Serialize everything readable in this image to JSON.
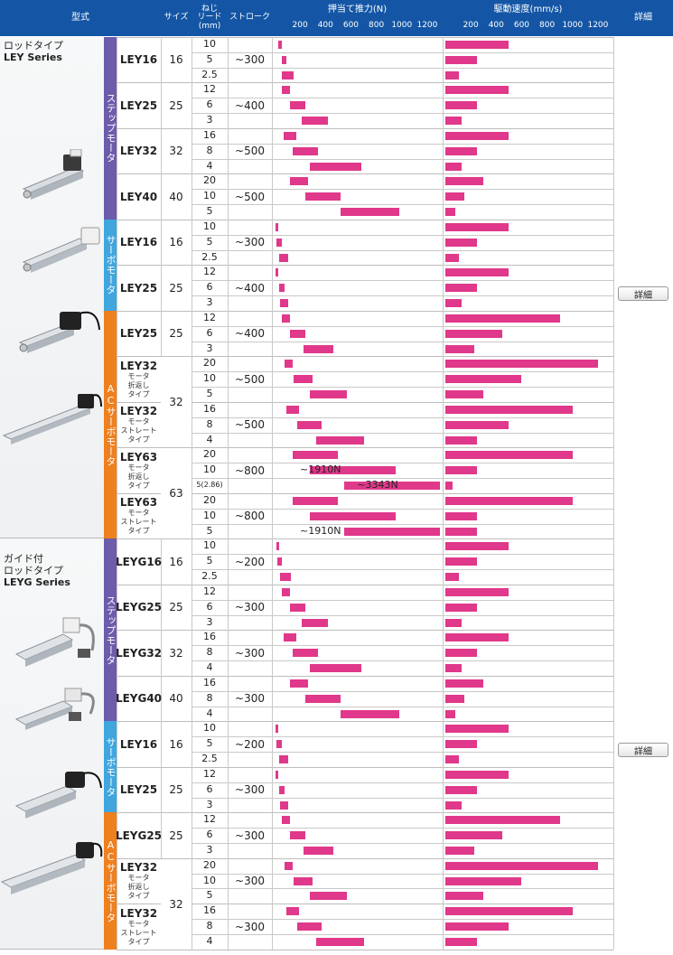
{
  "header": {
    "type_label": "型式",
    "size_label": "サイズ",
    "lead_label": [
      "ねじ",
      "リード",
      "(mm)"
    ],
    "stroke_label": "ストローク",
    "force_label": "押当て推力(N)",
    "speed_label": "駆動速度(mm/s)",
    "detail_label": "詳細",
    "ticks": [
      "200",
      "400",
      "600",
      "800",
      "1000",
      "1200"
    ]
  },
  "series": [
    {
      "name_lines": [
        "ロッドタイプ",
        "LEY Series"
      ],
      "detail_button": "詳細"
    },
    {
      "name_lines": [
        "ガイド付",
        "ロッドタイプ",
        "LEYG Series"
      ],
      "detail_button": "詳細"
    }
  ],
  "controls": [
    {
      "label": "ステップモータ",
      "color": "#6d5bab"
    },
    {
      "label": "サーボモータ",
      "color": "#3fa6de"
    },
    {
      "label": "ACサーボモータ",
      "color": "#f07f1d"
    },
    {
      "label": "ステップモータ",
      "color": "#6d5bab"
    },
    {
      "label": "サーボモータ",
      "color": "#3fa6de"
    },
    {
      "label": "ACサーボモータ",
      "color": "#f07f1d"
    }
  ],
  "groups": [
    {
      "model": "LEY16",
      "sub": [],
      "size": "16",
      "stroke": "~300"
    },
    {
      "model": "LEY25",
      "sub": [],
      "size": "25",
      "stroke": "~400"
    },
    {
      "model": "LEY32",
      "sub": [],
      "size": "32",
      "stroke": "~500"
    },
    {
      "model": "LEY40",
      "sub": [],
      "size": "40",
      "stroke": "~500"
    },
    {
      "model": "LEY16",
      "sub": [],
      "size": "16",
      "stroke": "~300"
    },
    {
      "model": "LEY25",
      "sub": [],
      "size": "25",
      "stroke": "~400"
    },
    {
      "model": "LEY25",
      "sub": [],
      "size": "25",
      "stroke": "~400"
    },
    {
      "model": "LEY32",
      "sub": [
        "モータ",
        "折返し",
        "タイプ"
      ],
      "size": "",
      "stroke": "~500"
    },
    {
      "model": "LEY32",
      "sub": [
        "モータ",
        "ストレート",
        "タイプ"
      ],
      "size": "",
      "stroke": "~500"
    },
    {
      "model": "LEY63",
      "sub": [
        "モータ",
        "折返し",
        "タイプ"
      ],
      "size": "",
      "stroke": "~800"
    },
    {
      "model": "LEY63",
      "sub": [
        "モータ",
        "ストレート",
        "タイプ"
      ],
      "size": "",
      "stroke": "~800"
    },
    {
      "model": "LEYG16",
      "sub": [],
      "size": "16",
      "stroke": "~200"
    },
    {
      "model": "LEYG25",
      "sub": [],
      "size": "25",
      "stroke": "~300"
    },
    {
      "model": "LEYG32",
      "sub": [],
      "size": "32",
      "stroke": "~300"
    },
    {
      "model": "LEYG40",
      "sub": [],
      "size": "40",
      "stroke": "~300"
    },
    {
      "model": "LEY16",
      "sub": [],
      "size": "16",
      "stroke": "~200"
    },
    {
      "model": "LEY25",
      "sub": [],
      "size": "25",
      "stroke": "~300"
    },
    {
      "model": "LEYG25",
      "sub": [],
      "size": "25",
      "stroke": "~300"
    },
    {
      "model": "LEY32",
      "sub": [
        "モータ",
        "折返し",
        "タイプ"
      ],
      "size": "",
      "stroke": "~300"
    },
    {
      "model": "LEY32",
      "sub": [
        "モータ",
        "ストレート",
        "タイプ"
      ],
      "size": "",
      "stroke": "~300"
    }
  ],
  "merged_sizes": [
    {
      "value": "32"
    },
    {
      "value": "63"
    },
    {
      "value": "32"
    }
  ],
  "leads": [
    "10",
    "5",
    "2.5",
    "12",
    "6",
    "3",
    "16",
    "8",
    "4",
    "20",
    "10",
    "5",
    "10",
    "5",
    "2.5",
    "12",
    "6",
    "3",
    "12",
    "6",
    "3",
    "20",
    "10",
    "5",
    "16",
    "8",
    "4",
    "20",
    "10",
    "5(2.86)",
    "20",
    "10",
    "5",
    "10",
    "5",
    "2.5",
    "12",
    "6",
    "3",
    "16",
    "8",
    "4",
    "16",
    "8",
    "4",
    "10",
    "5",
    "2.5",
    "12",
    "6",
    "3",
    "12",
    "6",
    "3",
    "20",
    "10",
    "5",
    "16",
    "8",
    "4"
  ],
  "chart_data": {
    "type": "bar",
    "axis": {
      "min": 0,
      "max": 1300,
      "ticks": [
        200,
        400,
        600,
        800,
        1000,
        1200
      ]
    },
    "force": [
      [
        30,
        60
      ],
      [
        60,
        90
      ],
      [
        60,
        150
      ],
      [
        60,
        120
      ],
      [
        120,
        240
      ],
      [
        210,
        420
      ],
      [
        70,
        170
      ],
      [
        140,
        340
      ],
      [
        280,
        680
      ],
      [
        120,
        260
      ],
      [
        240,
        520
      ],
      [
        520,
        980
      ],
      [
        5,
        30
      ],
      [
        15,
        60
      ],
      [
        35,
        110
      ],
      [
        5,
        25
      ],
      [
        35,
        75
      ],
      [
        45,
        110
      ],
      [
        60,
        120
      ],
      [
        120,
        240
      ],
      [
        230,
        460
      ],
      [
        75,
        145
      ],
      [
        150,
        300
      ],
      [
        280,
        570
      ],
      [
        90,
        190
      ],
      [
        180,
        370
      ],
      [
        330,
        700
      ],
      [
        140,
        500
      ],
      [
        280,
        950
      ],
      [
        550,
        1300
      ],
      [
        140,
        500
      ],
      [
        280,
        950
      ],
      [
        550,
        1300
      ],
      [
        12,
        30
      ],
      [
        20,
        60
      ],
      [
        40,
        130
      ],
      [
        60,
        120
      ],
      [
        120,
        240
      ],
      [
        210,
        420
      ],
      [
        70,
        170
      ],
      [
        140,
        340
      ],
      [
        280,
        680
      ],
      [
        120,
        260
      ],
      [
        240,
        520
      ],
      [
        520,
        980
      ],
      [
        5,
        30
      ],
      [
        15,
        60
      ],
      [
        35,
        110
      ],
      [
        5,
        25
      ],
      [
        35,
        75
      ],
      [
        45,
        110
      ],
      [
        60,
        120
      ],
      [
        120,
        240
      ],
      [
        230,
        460
      ],
      [
        75,
        145
      ],
      [
        150,
        300
      ],
      [
        280,
        570
      ],
      [
        90,
        190
      ],
      [
        180,
        370
      ],
      [
        330,
        700
      ]
    ],
    "speed": [
      [
        0,
        500
      ],
      [
        0,
        250
      ],
      [
        0,
        105
      ],
      [
        0,
        500
      ],
      [
        0,
        250
      ],
      [
        0,
        125
      ],
      [
        0,
        500
      ],
      [
        0,
        250
      ],
      [
        0,
        125
      ],
      [
        0,
        300
      ],
      [
        0,
        150
      ],
      [
        0,
        75
      ],
      [
        0,
        500
      ],
      [
        0,
        250
      ],
      [
        0,
        105
      ],
      [
        0,
        500
      ],
      [
        0,
        250
      ],
      [
        0,
        125
      ],
      [
        0,
        900
      ],
      [
        0,
        450
      ],
      [
        0,
        225
      ],
      [
        0,
        1200
      ],
      [
        0,
        600
      ],
      [
        0,
        300
      ],
      [
        0,
        1000
      ],
      [
        0,
        500
      ],
      [
        0,
        250
      ],
      [
        0,
        1000
      ],
      [
        0,
        250
      ],
      [
        0,
        60
      ],
      [
        0,
        1000
      ],
      [
        0,
        250
      ],
      [
        0,
        250
      ],
      [
        0,
        500
      ],
      [
        0,
        250
      ],
      [
        0,
        105
      ],
      [
        0,
        500
      ],
      [
        0,
        250
      ],
      [
        0,
        125
      ],
      [
        0,
        500
      ],
      [
        0,
        250
      ],
      [
        0,
        125
      ],
      [
        0,
        300
      ],
      [
        0,
        150
      ],
      [
        0,
        75
      ],
      [
        0,
        500
      ],
      [
        0,
        250
      ],
      [
        0,
        105
      ],
      [
        0,
        500
      ],
      [
        0,
        250
      ],
      [
        0,
        125
      ],
      [
        0,
        900
      ],
      [
        0,
        450
      ],
      [
        0,
        225
      ],
      [
        0,
        1200
      ],
      [
        0,
        600
      ],
      [
        0,
        300
      ],
      [
        0,
        1000
      ],
      [
        0,
        500
      ],
      [
        0,
        250
      ]
    ],
    "notes": [
      {
        "row": 28,
        "text": "~1910N",
        "value_start": 550,
        "value_end": 1300
      },
      {
        "row": 29,
        "text": "~3343N",
        "value_start": 1000,
        "value_end": 1300
      },
      {
        "row": 32,
        "text": "~1910N",
        "value_start": 550,
        "value_end": 1300
      }
    ]
  }
}
